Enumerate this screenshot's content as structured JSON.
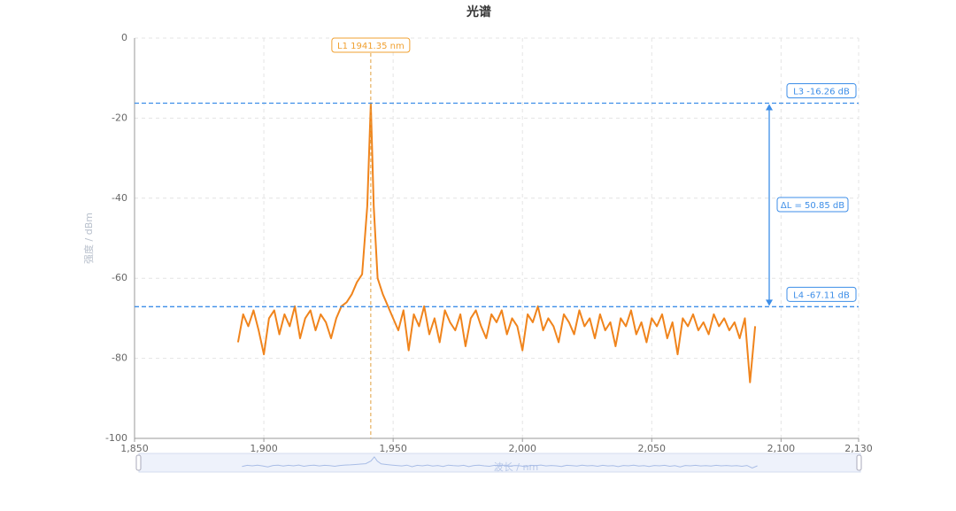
{
  "chart_data": {
    "type": "line",
    "title": "光谱",
    "y_label": "强度 / dBm",
    "x_label": "波长 / nm",
    "xlim": [
      1850,
      2130
    ],
    "ylim": [
      -100,
      0
    ],
    "xticks": [
      {
        "value": 1850,
        "label": "1,850"
      },
      {
        "value": 1900,
        "label": "1,900"
      },
      {
        "value": 1950,
        "label": "1,950"
      },
      {
        "value": 2000,
        "label": "2,000"
      },
      {
        "value": 2050,
        "label": "2,050"
      },
      {
        "value": 2100,
        "label": "2,100"
      },
      {
        "value": 2130,
        "label": "2,130"
      }
    ],
    "yticks": [
      0,
      -20,
      -40,
      -60,
      -80,
      -100
    ],
    "grid": true,
    "series": [
      {
        "name": "光谱",
        "color": "#f0841c",
        "x": [
          1890,
          1892,
          1894,
          1896,
          1898,
          1900,
          1902,
          1904,
          1906,
          1908,
          1910,
          1912,
          1914,
          1916,
          1918,
          1920,
          1922,
          1924,
          1926,
          1928,
          1930,
          1932,
          1934,
          1936,
          1938,
          1940,
          1941.35,
          1942.5,
          1944,
          1946,
          1948,
          1950,
          1952,
          1954,
          1956,
          1958,
          1960,
          1962,
          1964,
          1966,
          1968,
          1970,
          1972,
          1974,
          1976,
          1978,
          1980,
          1982,
          1984,
          1986,
          1988,
          1990,
          1992,
          1994,
          1996,
          1998,
          2000,
          2002,
          2004,
          2006,
          2008,
          2010,
          2012,
          2014,
          2016,
          2018,
          2020,
          2022,
          2024,
          2026,
          2028,
          2030,
          2032,
          2034,
          2036,
          2038,
          2040,
          2042,
          2044,
          2046,
          2048,
          2050,
          2052,
          2054,
          2056,
          2058,
          2060,
          2062,
          2064,
          2066,
          2068,
          2070,
          2072,
          2074,
          2076,
          2078,
          2080,
          2082,
          2084,
          2086,
          2088,
          2090
        ],
        "values": [
          -76,
          -69,
          -72,
          -68,
          -73,
          -79,
          -70,
          -68,
          -74,
          -69,
          -72,
          -67,
          -75,
          -70,
          -68,
          -73,
          -69,
          -71,
          -75,
          -70,
          -67,
          -66,
          -64,
          -61,
          -59,
          -42,
          -16.26,
          -42,
          -60,
          -64,
          -67,
          -70,
          -73,
          -68,
          -78,
          -69,
          -72,
          -67,
          -74,
          -70,
          -76,
          -68,
          -71,
          -73,
          -69,
          -77,
          -70,
          -68,
          -72,
          -75,
          -69,
          -71,
          -68,
          -74,
          -70,
          -72,
          -78,
          -69,
          -71,
          -67,
          -73,
          -70,
          -72,
          -76,
          -69,
          -71,
          -74,
          -68,
          -72,
          -70,
          -75,
          -69,
          -73,
          -71,
          -77,
          -70,
          -72,
          -68,
          -74,
          -71,
          -76,
          -70,
          -72,
          -69,
          -75,
          -71,
          -79,
          -70,
          -72,
          -69,
          -73,
          -71,
          -74,
          -69,
          -72,
          -70,
          -73,
          -71,
          -75,
          -70,
          -86,
          -72
        ]
      }
    ],
    "markers": {
      "l1": {
        "text": "L1  1941.35 nm",
        "x": 1941.35
      },
      "l3": {
        "text": "L3  -16.26 dB",
        "y": -16.26
      },
      "l4": {
        "text": "L4  -67.11 dB",
        "y": -67.11
      },
      "delta": {
        "text": "ΔL = 50.85 dB",
        "value": 50.85
      }
    }
  }
}
